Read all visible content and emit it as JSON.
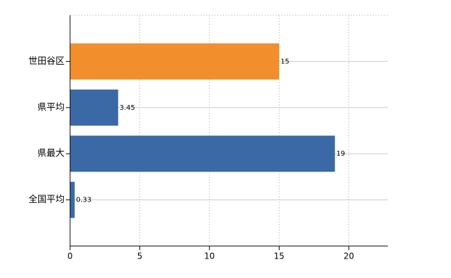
{
  "chart_data": {
    "type": "hbar",
    "categories": [
      "世田谷区",
      "県平均",
      "県最大",
      "全国平均"
    ],
    "values": [
      15,
      3.45,
      19,
      0.33
    ],
    "colors": [
      "#f28e2b",
      "#3a69a6",
      "#3a69a6",
      "#3a69a6"
    ],
    "xlim": [
      0,
      22.8
    ],
    "xticks": [
      0,
      5,
      10,
      15,
      20
    ],
    "grid": true
  }
}
